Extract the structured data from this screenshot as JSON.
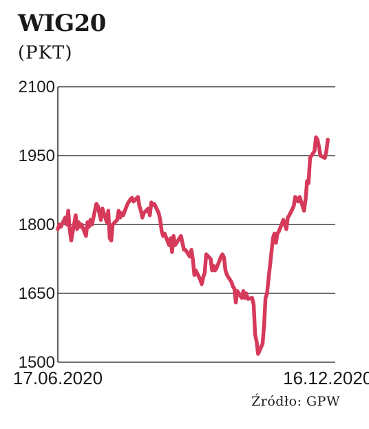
{
  "chart_data": {
    "type": "line",
    "title": "WIG20",
    "unit": "(PKT)",
    "source": "Źródło: GPW",
    "color": "#d63a5a",
    "grid": true,
    "ylim": [
      1500,
      2100
    ],
    "y_ticks": [
      1500,
      1650,
      1800,
      1950,
      2100
    ],
    "y_tick_labels": [
      "1500",
      "1650",
      "1800",
      "1950",
      "2100"
    ],
    "x_tick_labels": [
      {
        "label": "17.06.2020",
        "x": "2020-06-17"
      },
      {
        "label": "16.12.2020",
        "x": "2020-12-16"
      }
    ],
    "xlim": [
      "2020-06-17",
      "2020-12-21"
    ],
    "series": [
      {
        "points": [
          [
            "2020-06-17",
            1790
          ],
          [
            "2020-06-18",
            1800
          ],
          [
            "2020-06-19",
            1795
          ],
          [
            "2020-06-22",
            1815
          ],
          [
            "2020-06-23",
            1800
          ],
          [
            "2020-06-24",
            1830
          ],
          [
            "2020-06-25",
            1790
          ],
          [
            "2020-06-26",
            1765
          ],
          [
            "2020-06-29",
            1820
          ],
          [
            "2020-06-30",
            1790
          ],
          [
            "2020-07-01",
            1805
          ],
          [
            "2020-07-02",
            1795
          ],
          [
            "2020-07-03",
            1800
          ],
          [
            "2020-07-06",
            1775
          ],
          [
            "2020-07-07",
            1805
          ],
          [
            "2020-07-08",
            1795
          ],
          [
            "2020-07-09",
            1810
          ],
          [
            "2020-07-10",
            1800
          ],
          [
            "2020-07-13",
            1845
          ],
          [
            "2020-07-14",
            1840
          ],
          [
            "2020-07-15",
            1825
          ],
          [
            "2020-07-16",
            1810
          ],
          [
            "2020-07-17",
            1835
          ],
          [
            "2020-07-20",
            1805
          ],
          [
            "2020-07-21",
            1830
          ],
          [
            "2020-07-22",
            1770
          ],
          [
            "2020-07-23",
            1765
          ],
          [
            "2020-07-24",
            1800
          ],
          [
            "2020-07-27",
            1810
          ],
          [
            "2020-07-28",
            1830
          ],
          [
            "2020-07-29",
            1815
          ],
          [
            "2020-07-30",
            1825
          ],
          [
            "2020-07-31",
            1820
          ],
          [
            "2020-08-03",
            1845
          ],
          [
            "2020-08-04",
            1850
          ],
          [
            "2020-08-05",
            1855
          ],
          [
            "2020-08-06",
            1858
          ],
          [
            "2020-08-07",
            1850
          ],
          [
            "2020-08-10",
            1860
          ],
          [
            "2020-08-11",
            1840
          ],
          [
            "2020-08-12",
            1830
          ],
          [
            "2020-08-13",
            1815
          ],
          [
            "2020-08-14",
            1825
          ],
          [
            "2020-08-17",
            1835
          ],
          [
            "2020-08-18",
            1820
          ],
          [
            "2020-08-19",
            1848
          ],
          [
            "2020-08-20",
            1842
          ],
          [
            "2020-08-21",
            1845
          ],
          [
            "2020-08-24",
            1825
          ],
          [
            "2020-08-25",
            1810
          ],
          [
            "2020-08-26",
            1785
          ],
          [
            "2020-08-27",
            1775
          ],
          [
            "2020-08-28",
            1780
          ],
          [
            "2020-08-31",
            1755
          ],
          [
            "2020-09-01",
            1770
          ],
          [
            "2020-09-02",
            1740
          ],
          [
            "2020-09-03",
            1775
          ],
          [
            "2020-09-04",
            1755
          ],
          [
            "2020-09-07",
            1770
          ],
          [
            "2020-09-08",
            1775
          ],
          [
            "2020-09-09",
            1760
          ],
          [
            "2020-09-10",
            1745
          ],
          [
            "2020-09-11",
            1745
          ],
          [
            "2020-09-14",
            1730
          ],
          [
            "2020-09-15",
            1745
          ],
          [
            "2020-09-16",
            1725
          ],
          [
            "2020-09-17",
            1690
          ],
          [
            "2020-09-18",
            1700
          ],
          [
            "2020-09-21",
            1680
          ],
          [
            "2020-09-22",
            1670
          ],
          [
            "2020-09-23",
            1685
          ],
          [
            "2020-09-24",
            1695
          ],
          [
            "2020-09-25",
            1735
          ],
          [
            "2020-09-28",
            1725
          ],
          [
            "2020-09-29",
            1700
          ],
          [
            "2020-09-30",
            1710
          ],
          [
            "2020-10-01",
            1700
          ],
          [
            "2020-10-02",
            1705
          ],
          [
            "2020-10-05",
            1730
          ],
          [
            "2020-10-06",
            1735
          ],
          [
            "2020-10-07",
            1728
          ],
          [
            "2020-10-08",
            1700
          ],
          [
            "2020-10-09",
            1690
          ],
          [
            "2020-10-12",
            1675
          ],
          [
            "2020-10-13",
            1665
          ],
          [
            "2020-10-14",
            1660
          ],
          [
            "2020-10-15",
            1630
          ],
          [
            "2020-10-16",
            1655
          ],
          [
            "2020-10-19",
            1640
          ],
          [
            "2020-10-20",
            1655
          ],
          [
            "2020-10-21",
            1640
          ],
          [
            "2020-10-22",
            1650
          ],
          [
            "2020-10-23",
            1638
          ],
          [
            "2020-10-26",
            1640
          ],
          [
            "2020-10-27",
            1625
          ],
          [
            "2020-10-28",
            1560
          ],
          [
            "2020-10-29",
            1545
          ],
          [
            "2020-10-30",
            1518
          ],
          [
            "2020-11-02",
            1540
          ],
          [
            "2020-11-03",
            1580
          ],
          [
            "2020-11-04",
            1640
          ],
          [
            "2020-11-05",
            1650
          ],
          [
            "2020-11-06",
            1680
          ],
          [
            "2020-11-09",
            1770
          ],
          [
            "2020-11-10",
            1780
          ],
          [
            "2020-11-11",
            1760
          ],
          [
            "2020-11-12",
            1780
          ],
          [
            "2020-11-13",
            1785
          ],
          [
            "2020-11-16",
            1810
          ],
          [
            "2020-11-17",
            1800
          ],
          [
            "2020-11-18",
            1790
          ],
          [
            "2020-11-19",
            1815
          ],
          [
            "2020-11-20",
            1820
          ],
          [
            "2020-11-23",
            1840
          ],
          [
            "2020-11-24",
            1860
          ],
          [
            "2020-11-25",
            1855
          ],
          [
            "2020-11-26",
            1850
          ],
          [
            "2020-11-27",
            1860
          ],
          [
            "2020-11-30",
            1830
          ],
          [
            "2020-12-01",
            1855
          ],
          [
            "2020-12-02",
            1895
          ],
          [
            "2020-12-03",
            1890
          ],
          [
            "2020-12-04",
            1945
          ],
          [
            "2020-12-07",
            1960
          ],
          [
            "2020-12-08",
            1990
          ],
          [
            "2020-12-09",
            1985
          ],
          [
            "2020-12-10",
            1970
          ],
          [
            "2020-12-11",
            1950
          ],
          [
            "2020-12-14",
            1945
          ],
          [
            "2020-12-15",
            1960
          ],
          [
            "2020-12-16",
            1985
          ]
        ]
      }
    ]
  }
}
